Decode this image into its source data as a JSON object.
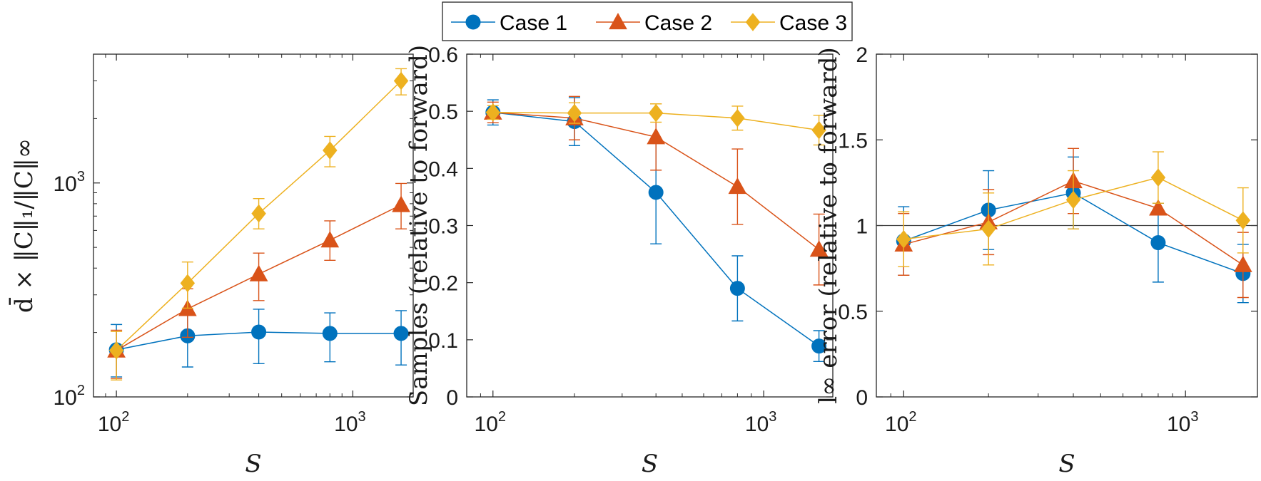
{
  "legend": {
    "placement": "top-center",
    "entries": [
      {
        "label": "Case 1",
        "color": "#0072BD",
        "marker": "circle"
      },
      {
        "label": "Case 2",
        "color": "#D95319",
        "marker": "triangle"
      },
      {
        "label": "Case 3",
        "color": "#EDB120",
        "marker": "diamond"
      }
    ]
  },
  "chart_data": [
    {
      "type": "line",
      "xlabel": "S",
      "ylabel": "d̄ × ‖C‖₁/‖C‖∞",
      "xscale": "log",
      "yscale": "log",
      "xlim": [
        80,
        1800
      ],
      "ylim": [
        100,
        4000
      ],
      "xticks": [
        {
          "base": "10",
          "exp": "2",
          "value": 100
        },
        {
          "base": "10",
          "exp": "3",
          "value": 1000
        }
      ],
      "yticks": [
        {
          "base": "10",
          "exp": "2",
          "value": 100
        },
        {
          "base": "10",
          "exp": "3",
          "value": 1000
        }
      ],
      "grid": false,
      "x": [
        100,
        200,
        400,
        800,
        1600
      ],
      "series": [
        {
          "name": "Case 1",
          "values": [
            166,
            193,
            201,
            198,
            198
          ],
          "err": [
            [
              42,
              52
            ],
            [
              55,
              62
            ],
            [
              58,
              56
            ],
            [
              52,
              49
            ],
            [
              57,
              55
            ]
          ]
        },
        {
          "name": "Case 2",
          "values": [
            165,
            258,
            375,
            540,
            790
          ],
          "err": [
            [
              43,
              40
            ],
            [
              68,
              62
            ],
            [
              93,
              95
            ],
            [
              105,
              125
            ],
            [
              180,
              205
            ]
          ]
        },
        {
          "name": "Case 3",
          "values": [
            165,
            340,
            720,
            1420,
            3000
          ],
          "err": [
            [
              45,
              37
            ],
            [
              80,
              87
            ],
            [
              110,
              125
            ],
            [
              230,
              230
            ],
            [
              420,
              420
            ]
          ]
        }
      ]
    },
    {
      "type": "line",
      "xlabel": "S",
      "ylabel": "Samples (relative to forward)",
      "xscale": "log",
      "yscale": "linear",
      "xlim": [
        80,
        1800
      ],
      "ylim": [
        0,
        0.6
      ],
      "xticks": [
        {
          "base": "10",
          "exp": "2",
          "value": 100
        },
        {
          "base": "10",
          "exp": "3",
          "value": 1000
        }
      ],
      "yticks": [
        {
          "label": "0",
          "value": 0
        },
        {
          "label": "0.1",
          "value": 0.1
        },
        {
          "label": "0.2",
          "value": 0.2
        },
        {
          "label": "0.3",
          "value": 0.3
        },
        {
          "label": "0.4",
          "value": 0.4
        },
        {
          "label": "0.5",
          "value": 0.5
        },
        {
          "label": "0.6",
          "value": 0.6
        }
      ],
      "grid": false,
      "x": [
        100,
        200,
        400,
        800,
        1600
      ],
      "series": [
        {
          "name": "Case 1",
          "values": [
            0.498,
            0.482,
            0.358,
            0.19,
            0.089
          ],
          "err": [
            [
              0.022,
              0.022
            ],
            [
              0.042,
              0.042
            ],
            [
              0.09,
              0.09
            ],
            [
              0.057,
              0.057
            ],
            [
              0.027,
              0.027
            ]
          ]
        },
        {
          "name": "Case 2",
          "values": [
            0.498,
            0.488,
            0.455,
            0.368,
            0.258
          ],
          "err": [
            [
              0.018,
              0.018
            ],
            [
              0.038,
              0.038
            ],
            [
              0.058,
              0.058
            ],
            [
              0.066,
              0.066
            ],
            [
              0.062,
              0.062
            ]
          ]
        },
        {
          "name": "Case 3",
          "values": [
            0.498,
            0.497,
            0.497,
            0.488,
            0.467
          ],
          "err": [
            [
              0.012,
              0.012
            ],
            [
              0.018,
              0.018
            ],
            [
              0.016,
              0.016
            ],
            [
              0.021,
              0.021
            ],
            [
              0.026,
              0.026
            ]
          ]
        }
      ]
    },
    {
      "type": "line",
      "xlabel": "S",
      "ylabel": "l∞ error (relative to forward)",
      "xscale": "log",
      "yscale": "linear",
      "xlim": [
        80,
        1800
      ],
      "ylim": [
        0,
        2
      ],
      "xticks": [
        {
          "base": "10",
          "exp": "2",
          "value": 100
        },
        {
          "base": "10",
          "exp": "3",
          "value": 1000
        }
      ],
      "yticks": [
        {
          "label": "0",
          "value": 0
        },
        {
          "label": "0.5",
          "value": 0.5
        },
        {
          "label": "1",
          "value": 1
        },
        {
          "label": "1.5",
          "value": 1.5
        },
        {
          "label": "2",
          "value": 2
        }
      ],
      "grid": false,
      "reference_line": 1,
      "x": [
        100,
        200,
        400,
        800,
        1600
      ],
      "series": [
        {
          "name": "Case 1",
          "values": [
            0.91,
            1.09,
            1.19,
            0.9,
            0.72
          ],
          "err": [
            [
              0.2,
              0.2
            ],
            [
              0.23,
              0.23
            ],
            [
              0.21,
              0.21
            ],
            [
              0.23,
              0.23
            ],
            [
              0.17,
              0.17
            ]
          ]
        },
        {
          "name": "Case 2",
          "values": [
            0.89,
            1.02,
            1.26,
            1.1,
            0.77
          ],
          "err": [
            [
              0.18,
              0.18
            ],
            [
              0.19,
              0.19
            ],
            [
              0.19,
              0.19
            ],
            [
              0.0,
              0.0
            ],
            [
              0.19,
              0.19
            ]
          ]
        },
        {
          "name": "Case 3",
          "values": [
            0.92,
            0.98,
            1.15,
            1.28,
            1.03
          ],
          "err": [
            [
              0.16,
              0.16
            ],
            [
              0.21,
              0.21
            ],
            [
              0.17,
              0.17
            ],
            [
              0.15,
              0.15
            ],
            [
              0.19,
              0.19
            ]
          ]
        }
      ]
    }
  ]
}
